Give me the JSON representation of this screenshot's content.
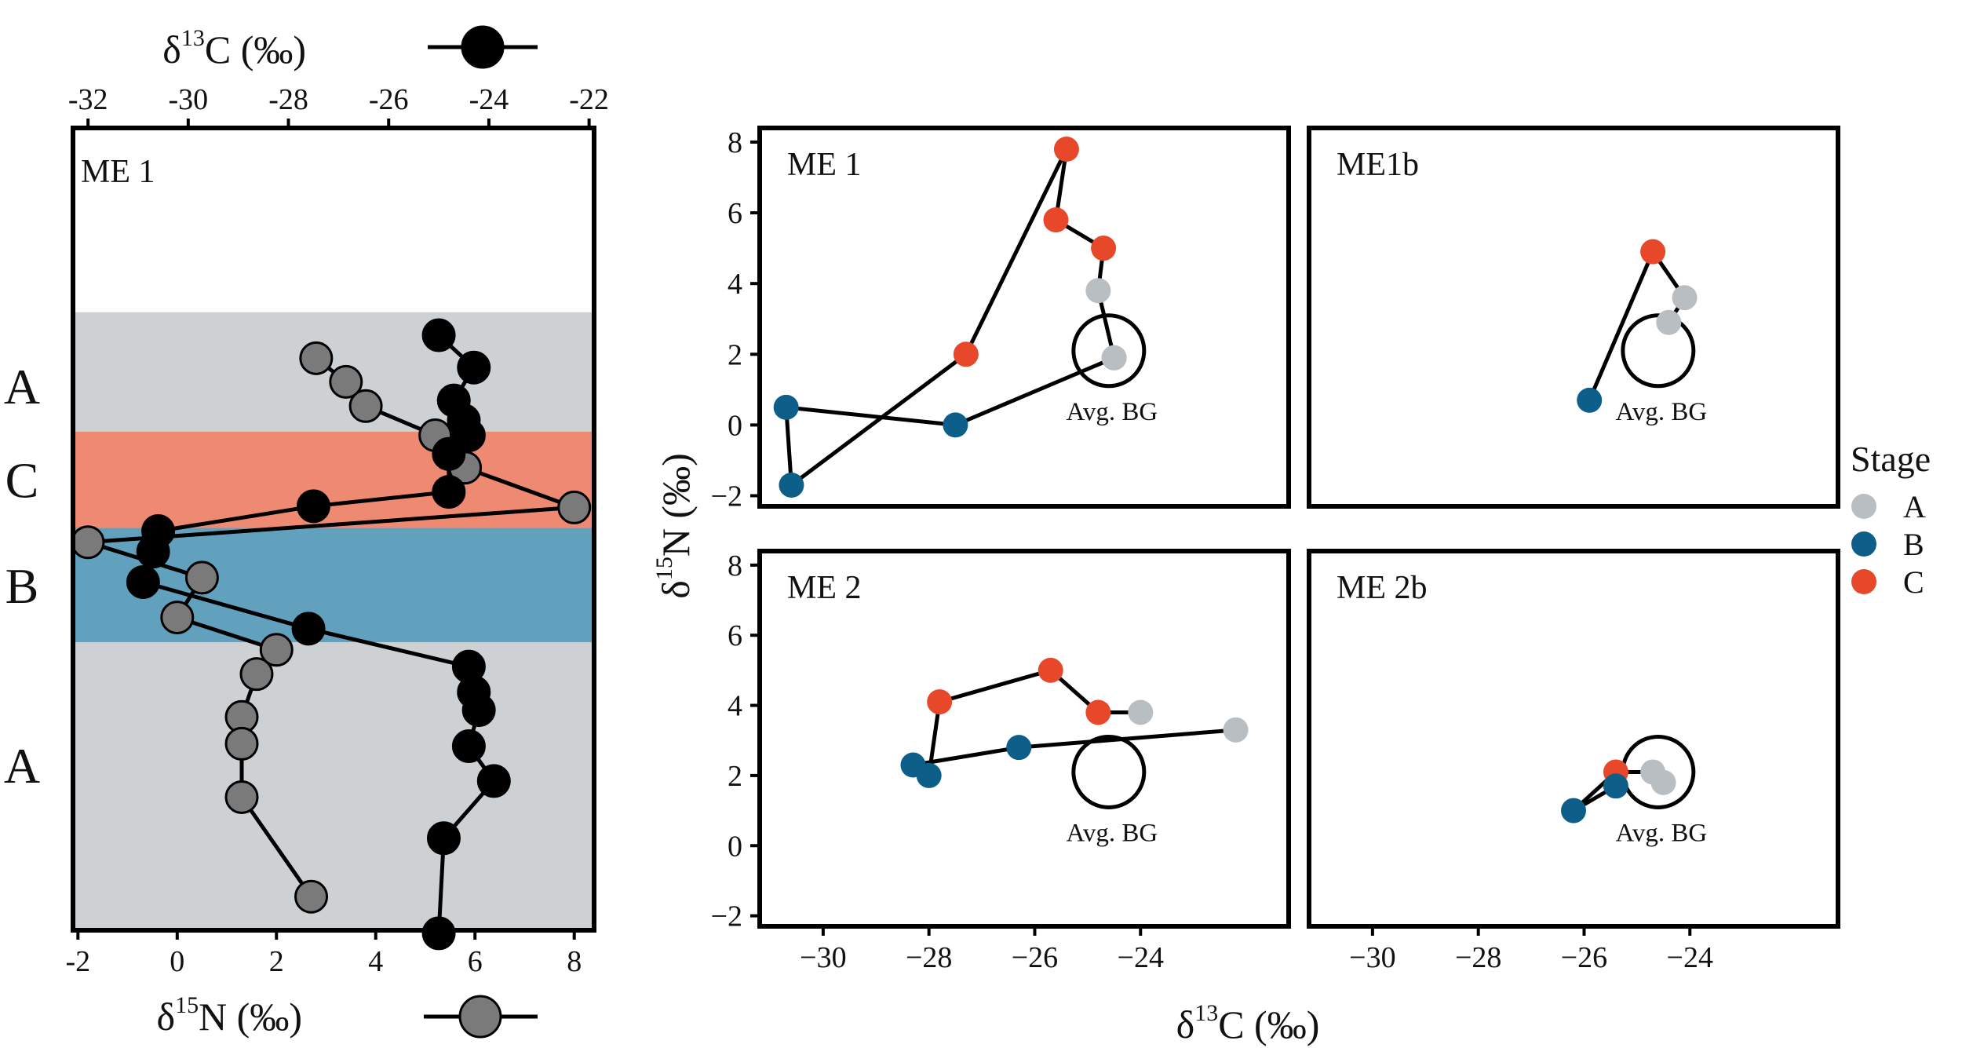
{
  "chart_data": {
    "type": "figure",
    "profile": {
      "type": "line",
      "panel_label": "ME 1",
      "top_axis": {
        "title": "δ13C (‰)",
        "ticks": [
          -32,
          -30,
          -28,
          -26,
          -24,
          -22
        ],
        "range": [
          -32.3,
          -21.9
        ]
      },
      "bottom_axis": {
        "title": "δ15N (‰)",
        "ticks": [
          -2,
          0,
          2,
          4,
          6,
          8
        ],
        "range": [
          -2.1,
          8.4
        ]
      },
      "depth_range": [
        0,
        100
      ],
      "bands": [
        {
          "stage": "A",
          "from": 13.6,
          "to": 32.8,
          "color": "#cdd1d4"
        },
        {
          "stage": "C",
          "from": 32.8,
          "to": 48.3,
          "color": "#ef8a72"
        },
        {
          "stage": "B",
          "from": 48.3,
          "to": 66.7,
          "color": "#62a1bd"
        },
        {
          "stage": "A",
          "from": 66.7,
          "to": 113.6,
          "color": "#cdd1d4"
        }
      ],
      "stage_labels": [
        {
          "text": "A",
          "pos": 25.5
        },
        {
          "text": "C",
          "pos": 40.6
        },
        {
          "text": "B",
          "pos": 57.6
        },
        {
          "text": "A",
          "pos": 86.5
        }
      ],
      "d13C_series": {
        "name": "δ13C",
        "color": "#000000",
        "depth": [
          17.3,
          22.5,
          27.8,
          31.0,
          33.4,
          36.4,
          42.5,
          44.8,
          48.8,
          52.1,
          57.0,
          64.5,
          70.6,
          74.7,
          77.6,
          83.4,
          89.0,
          98.2,
          113.5
        ],
        "values": [
          -25.0,
          -24.3,
          -24.7,
          -24.5,
          -24.4,
          -24.8,
          -24.8,
          -27.5,
          -30.6,
          -30.7,
          -30.9,
          -27.6,
          -24.4,
          -24.3,
          -24.2,
          -24.4,
          -23.9,
          -24.9,
          -25.0
        ]
      },
      "d15N_series": {
        "name": "δ15N",
        "color": "#7a7a7a",
        "depth": [
          21.0,
          24.8,
          28.7,
          33.4,
          38.6,
          45.0,
          50.6,
          56.3,
          62.7,
          67.9,
          71.8,
          78.7,
          83.0,
          91.6,
          107.6
        ],
        "values": [
          2.8,
          3.4,
          3.8,
          5.2,
          5.8,
          8.0,
          -1.8,
          0.5,
          0.0,
          2.0,
          1.6,
          1.3,
          1.3,
          1.3,
          2.7
        ]
      }
    },
    "scatter": {
      "type": "scatter",
      "xlabel": "δ13C (‰)",
      "ylabel": "δ15N (‰)",
      "xlim": [
        -31.2,
        -21.2
      ],
      "ylim": [
        -2.3,
        8.4
      ],
      "xticks": [
        -30,
        -28,
        -26,
        -24
      ],
      "yticks": [
        -2,
        0,
        2,
        4,
        6,
        8
      ],
      "xtick_labels": [
        "−30",
        "−28",
        "−26",
        "−24"
      ],
      "ytick_labels": [
        "−2",
        "0",
        "2",
        "4",
        "6",
        "8"
      ],
      "bg_label": "Avg. BG",
      "legend": {
        "title": "Stage",
        "entries": [
          {
            "label": "A",
            "color": "#b9bec3"
          },
          {
            "label": "B",
            "color": "#0d5f8a"
          },
          {
            "label": "C",
            "color": "#e8482a"
          }
        ]
      },
      "panels": [
        {
          "label": "ME 1",
          "bg": [
            -24.6,
            2.1
          ],
          "x": [
            -24.5,
            -24.8,
            -24.7,
            -25.6,
            -25.4,
            -27.3,
            -30.6,
            -30.7,
            -27.5,
            -24.5
          ],
          "y": [
            1.9,
            3.8,
            5.0,
            5.8,
            7.8,
            2.0,
            -1.7,
            0.5,
            0.0,
            1.9
          ],
          "stage": [
            "A",
            "A",
            "C",
            "C",
            "C",
            "C",
            "B",
            "B",
            "B",
            "A"
          ]
        },
        {
          "label": "ME1b",
          "bg": [
            -24.6,
            2.1
          ],
          "x": [
            -24.4,
            -24.1,
            -24.7,
            -25.9
          ],
          "y": [
            2.9,
            3.6,
            4.9,
            0.7
          ],
          "stage": [
            "A",
            "A",
            "C",
            "B"
          ]
        },
        {
          "label": "ME 2",
          "bg": [
            -24.6,
            2.1
          ],
          "x": [
            -22.2,
            -26.3,
            -28.3,
            -28.0,
            -27.8,
            -25.7,
            -24.8,
            -24.0
          ],
          "y": [
            3.3,
            2.8,
            2.3,
            2.0,
            4.1,
            5.0,
            3.8,
            3.8
          ],
          "stage": [
            "A",
            "B",
            "B",
            "B",
            "C",
            "C",
            "C",
            "A"
          ]
        },
        {
          "label": "ME 2b",
          "bg": [
            -24.6,
            2.1
          ],
          "x": [
            -24.5,
            -24.7,
            -25.4,
            -26.2,
            -25.4
          ],
          "y": [
            1.8,
            2.1,
            2.1,
            1.0,
            1.7
          ],
          "stage": [
            "A",
            "A",
            "C",
            "B",
            "B"
          ]
        }
      ]
    }
  }
}
